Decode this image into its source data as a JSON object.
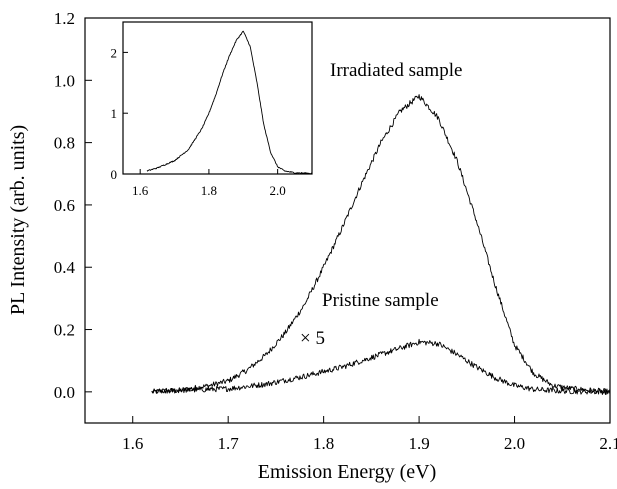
{
  "chart_data": [
    {
      "type": "line",
      "title": "",
      "xlabel": "Emission Energy (eV)",
      "ylabel": "PL Intensity (arb. units)",
      "xlim": [
        1.55,
        2.1
      ],
      "ylim": [
        -0.1,
        1.2
      ],
      "xticks": [
        "1.6",
        "1.7",
        "1.8",
        "1.9",
        "2.0",
        "2.1"
      ],
      "yticks": [
        "0.0",
        "0.2",
        "0.4",
        "0.6",
        "0.8",
        "1.0",
        "1.2"
      ],
      "grid": false,
      "series": [
        {
          "name": "Irradiated sample",
          "x": [
            1.62,
            1.65,
            1.68,
            1.7,
            1.72,
            1.74,
            1.76,
            1.78,
            1.8,
            1.82,
            1.84,
            1.86,
            1.88,
            1.9,
            1.92,
            1.94,
            1.96,
            1.98,
            2.0,
            2.02,
            2.04,
            2.06,
            2.08,
            2.1
          ],
          "values": [
            0.0,
            0.005,
            0.02,
            0.035,
            0.07,
            0.12,
            0.19,
            0.28,
            0.4,
            0.53,
            0.67,
            0.8,
            0.9,
            0.95,
            0.88,
            0.74,
            0.55,
            0.34,
            0.15,
            0.06,
            0.02,
            0.01,
            0.005,
            0.0
          ]
        },
        {
          "name": "Pristine sample",
          "annotation": "× 5",
          "x": [
            1.62,
            1.65,
            1.7,
            1.74,
            1.78,
            1.82,
            1.86,
            1.88,
            1.9,
            1.92,
            1.94,
            1.96,
            1.98,
            2.0,
            2.02,
            2.04,
            2.06,
            2.1
          ],
          "values": [
            0.0,
            0.005,
            0.01,
            0.025,
            0.05,
            0.08,
            0.12,
            0.14,
            0.16,
            0.155,
            0.12,
            0.08,
            0.045,
            0.02,
            0.008,
            0.004,
            0.002,
            0.0
          ]
        }
      ]
    },
    {
      "type": "line",
      "title": "",
      "xlabel": "",
      "ylabel": "",
      "xlim": [
        1.55,
        2.1
      ],
      "ylim": [
        0,
        2.5
      ],
      "xticks": [
        "1.6",
        "1.8",
        "2.0"
      ],
      "yticks": [
        "0",
        "1",
        "2"
      ],
      "grid": false,
      "series": [
        {
          "x": [
            1.62,
            1.65,
            1.7,
            1.74,
            1.78,
            1.8,
            1.82,
            1.84,
            1.86,
            1.88,
            1.9,
            1.92,
            1.94,
            1.96,
            1.98,
            2.0,
            2.02,
            2.05,
            2.1
          ],
          "values": [
            0.05,
            0.1,
            0.22,
            0.4,
            0.75,
            1.0,
            1.3,
            1.65,
            1.95,
            2.2,
            2.35,
            2.1,
            1.5,
            0.8,
            0.35,
            0.12,
            0.05,
            0.02,
            0.01
          ]
        }
      ]
    }
  ]
}
